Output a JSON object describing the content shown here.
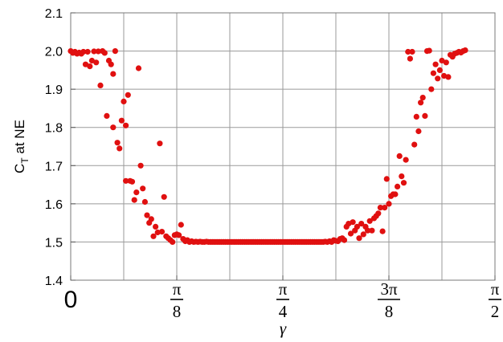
{
  "chart_data": {
    "type": "scatter",
    "xlabel": "γ",
    "ylabel_main": "C",
    "ylabel_sub": "T",
    "ylabel_rest": " at NE",
    "ylim": [
      1.4,
      2.1
    ],
    "xlim": [
      0,
      1.5708
    ],
    "grid": true,
    "point_color": "#e01010",
    "y_ticks": [
      {
        "value": 1.4,
        "label": "1.4"
      },
      {
        "value": 1.5,
        "label": "1.5"
      },
      {
        "value": 1.6,
        "label": "1.6"
      },
      {
        "value": 1.7,
        "label": "1.7"
      },
      {
        "value": 1.8,
        "label": "1.8"
      },
      {
        "value": 1.9,
        "label": "1.9"
      },
      {
        "value": 2.0,
        "label": "2.0"
      },
      {
        "value": 2.1,
        "label": "2.1"
      }
    ],
    "x_ticks": [
      {
        "value": 0,
        "label": "0"
      },
      {
        "value": 0.3927,
        "num": "π",
        "den": "8"
      },
      {
        "value": 0.7854,
        "num": "π",
        "den": "4"
      },
      {
        "value": 1.1781,
        "num": "3π",
        "den": "8"
      },
      {
        "value": 1.5708,
        "num": "π",
        "den": "2"
      }
    ],
    "x_gridlines": [
      0.1963,
      0.3927,
      0.589,
      0.7854,
      0.9817,
      1.1781,
      1.3744,
      1.5708
    ],
    "points": [
      [
        0.0,
        2.0
      ],
      [
        0.0079,
        1.995
      ],
      [
        0.0157,
        1.998
      ],
      [
        0.0236,
        1.993
      ],
      [
        0.0314,
        1.996
      ],
      [
        0.0393,
        1.993
      ],
      [
        0.0471,
        1.998
      ],
      [
        0.055,
        1.965
      ],
      [
        0.0628,
        1.998
      ],
      [
        0.0707,
        1.96
      ],
      [
        0.0785,
        1.975
      ],
      [
        0.0864,
        1.999
      ],
      [
        0.0942,
        1.97
      ],
      [
        0.1021,
        1.999
      ],
      [
        0.11,
        1.91
      ],
      [
        0.1178,
        2.0
      ],
      [
        0.1257,
        1.995
      ],
      [
        0.1335,
        1.83
      ],
      [
        0.1414,
        1.975
      ],
      [
        0.1492,
        1.965
      ],
      [
        0.1571,
        1.94
      ],
      [
        0.1649,
        2.0
      ],
      [
        0.1571,
        1.8
      ],
      [
        0.1728,
        1.76
      ],
      [
        0.1806,
        1.745
      ],
      [
        0.1885,
        1.818
      ],
      [
        0.1963,
        1.868
      ],
      [
        0.2042,
        1.805
      ],
      [
        0.212,
        1.885
      ],
      [
        0.2042,
        1.66
      ],
      [
        0.2199,
        1.66
      ],
      [
        0.2277,
        1.658
      ],
      [
        0.2356,
        1.61
      ],
      [
        0.2435,
        1.63
      ],
      [
        0.2513,
        1.955
      ],
      [
        0.2592,
        1.7
      ],
      [
        0.267,
        1.64
      ],
      [
        0.2749,
        1.605
      ],
      [
        0.2827,
        1.57
      ],
      [
        0.2906,
        1.55
      ],
      [
        0.2984,
        1.56
      ],
      [
        0.3063,
        1.515
      ],
      [
        0.3141,
        1.54
      ],
      [
        0.322,
        1.525
      ],
      [
        0.3298,
        1.758
      ],
      [
        0.3377,
        1.527
      ],
      [
        0.3456,
        1.618
      ],
      [
        0.3534,
        1.515
      ],
      [
        0.3613,
        1.51
      ],
      [
        0.3691,
        1.505
      ],
      [
        0.377,
        1.5
      ],
      [
        0.3848,
        1.518
      ],
      [
        0.3927,
        1.52
      ],
      [
        0.4005,
        1.518
      ],
      [
        0.4084,
        1.545
      ],
      [
        0.4163,
        1.508
      ],
      [
        0.4241,
        1.502
      ],
      [
        0.432,
        1.505
      ],
      [
        0.4398,
        1.5
      ],
      [
        0.4477,
        1.502
      ],
      [
        0.4555,
        1.5
      ],
      [
        0.4634,
        1.501
      ],
      [
        0.4712,
        1.5
      ],
      [
        0.4791,
        1.501
      ],
      [
        0.4869,
        1.5
      ],
      [
        0.4948,
        1.5
      ],
      [
        0.5027,
        1.501
      ],
      [
        0.5105,
        1.5
      ],
      [
        0.5184,
        1.5
      ],
      [
        0.5262,
        1.5
      ],
      [
        0.5341,
        1.5
      ],
      [
        0.5419,
        1.5
      ],
      [
        0.5498,
        1.5
      ],
      [
        0.5576,
        1.5
      ],
      [
        0.5655,
        1.5
      ],
      [
        0.5733,
        1.5
      ],
      [
        0.5812,
        1.5
      ],
      [
        0.589,
        1.5
      ],
      [
        0.5969,
        1.5
      ],
      [
        0.6047,
        1.5
      ],
      [
        0.6126,
        1.5
      ],
      [
        0.6205,
        1.5
      ],
      [
        0.6283,
        1.5
      ],
      [
        0.6362,
        1.5
      ],
      [
        0.644,
        1.5
      ],
      [
        0.6519,
        1.5
      ],
      [
        0.6597,
        1.5
      ],
      [
        0.6676,
        1.5
      ],
      [
        0.6754,
        1.5
      ],
      [
        0.6833,
        1.5
      ],
      [
        0.6911,
        1.5
      ],
      [
        0.699,
        1.5
      ],
      [
        0.7069,
        1.5
      ],
      [
        0.7147,
        1.5
      ],
      [
        0.7226,
        1.5
      ],
      [
        0.7304,
        1.5
      ],
      [
        0.7383,
        1.5
      ],
      [
        0.7461,
        1.5
      ],
      [
        0.754,
        1.5
      ],
      [
        0.7618,
        1.5
      ],
      [
        0.7697,
        1.5
      ],
      [
        0.7775,
        1.5
      ],
      [
        0.7854,
        1.5
      ],
      [
        0.7933,
        1.5
      ],
      [
        0.8011,
        1.5
      ],
      [
        0.809,
        1.5
      ],
      [
        0.8168,
        1.5
      ],
      [
        0.8247,
        1.5
      ],
      [
        0.8325,
        1.5
      ],
      [
        0.8404,
        1.5
      ],
      [
        0.8482,
        1.5
      ],
      [
        0.8561,
        1.5
      ],
      [
        0.8639,
        1.5
      ],
      [
        0.8718,
        1.5
      ],
      [
        0.8796,
        1.5
      ],
      [
        0.8875,
        1.5
      ],
      [
        0.8954,
        1.5
      ],
      [
        0.9032,
        1.5
      ],
      [
        0.9111,
        1.5
      ],
      [
        0.9189,
        1.5
      ],
      [
        0.9268,
        1.5
      ],
      [
        0.9346,
        1.5
      ],
      [
        0.9425,
        1.501
      ],
      [
        0.9503,
        1.5
      ],
      [
        0.9582,
        1.502
      ],
      [
        0.966,
        1.5
      ],
      [
        0.9739,
        1.505
      ],
      [
        0.9817,
        1.503
      ],
      [
        0.9896,
        1.502
      ],
      [
        0.9974,
        1.508
      ],
      [
        1.0053,
        1.51
      ],
      [
        1.0131,
        1.505
      ],
      [
        1.021,
        1.54
      ],
      [
        1.0289,
        1.548
      ],
      [
        1.0367,
        1.522
      ],
      [
        1.0446,
        1.552
      ],
      [
        1.0524,
        1.53
      ],
      [
        1.0603,
        1.54
      ],
      [
        1.0681,
        1.51
      ],
      [
        1.076,
        1.548
      ],
      [
        1.0838,
        1.52
      ],
      [
        1.0917,
        1.54
      ],
      [
        1.0995,
        1.53
      ],
      [
        1.1074,
        1.555
      ],
      [
        1.1152,
        1.53
      ],
      [
        1.1231,
        1.562
      ],
      [
        1.131,
        1.568
      ],
      [
        1.1388,
        1.575
      ],
      [
        1.1467,
        1.59
      ],
      [
        1.1545,
        1.528
      ],
      [
        1.1624,
        1.59
      ],
      [
        1.1702,
        1.665
      ],
      [
        1.1781,
        1.6
      ],
      [
        1.1859,
        1.62
      ],
      [
        1.1938,
        1.625
      ],
      [
        1.2016,
        1.625
      ],
      [
        1.2095,
        1.645
      ],
      [
        1.2173,
        1.725
      ],
      [
        1.2252,
        1.672
      ],
      [
        1.2331,
        1.655
      ],
      [
        1.2409,
        1.715
      ],
      [
        1.2488,
        1.998
      ],
      [
        1.2566,
        1.98
      ],
      [
        1.2645,
        1.998
      ],
      [
        1.2723,
        1.755
      ],
      [
        1.2802,
        1.828
      ],
      [
        1.288,
        1.79
      ],
      [
        1.2959,
        1.865
      ],
      [
        1.3037,
        1.878
      ],
      [
        1.3116,
        1.83
      ],
      [
        1.3194,
        2.0
      ],
      [
        1.3273,
        2.001
      ],
      [
        1.3352,
        1.9
      ],
      [
        1.343,
        1.942
      ],
      [
        1.3509,
        1.965
      ],
      [
        1.3587,
        1.928
      ],
      [
        1.3666,
        1.95
      ],
      [
        1.3744,
        1.975
      ],
      [
        1.3823,
        1.935
      ],
      [
        1.3901,
        1.97
      ],
      [
        1.398,
        1.932
      ],
      [
        1.4058,
        1.99
      ],
      [
        1.4137,
        1.985
      ],
      [
        1.4215,
        1.993
      ],
      [
        1.4294,
        1.995
      ],
      [
        1.4372,
        1.998
      ],
      [
        1.4451,
        1.996
      ],
      [
        1.453,
        2.0
      ],
      [
        1.4608,
        2.002
      ]
    ]
  }
}
